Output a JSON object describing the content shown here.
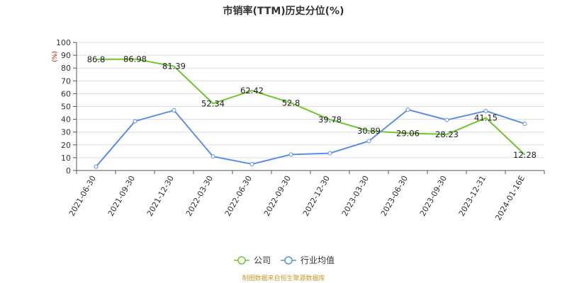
{
  "title": "市销率(TTM)历史分位(%)",
  "unit_label": "(%)",
  "source_note": "制图数据来自恒生聚源数据库",
  "colors": {
    "company": "#6cc62c",
    "industry": "#5b8ee6",
    "axis": "#555555",
    "grid": "#dddddd",
    "source": "#c89a2c"
  },
  "chart_data": {
    "type": "line",
    "categories": [
      "2021-06-30",
      "2021-09-30",
      "2021-12-30",
      "2022-03-30",
      "2022-06-30",
      "2022-09-30",
      "2022-12-30",
      "2023-03-30",
      "2023-06-30",
      "2023-09-30",
      "2023-12-31",
      "2024-01-16E"
    ],
    "ylim": [
      0,
      100
    ],
    "yticks": [
      0,
      10,
      20,
      30,
      40,
      50,
      60,
      70,
      80,
      90,
      100
    ],
    "grid": true,
    "legend_position": "bottom-center",
    "series": [
      {
        "name": "公司",
        "color": "#6cc62c",
        "marker": "none",
        "show_labels": true,
        "values": [
          86.8,
          86.98,
          81.39,
          52.34,
          62.42,
          52.8,
          39.78,
          30.89,
          29.06,
          28.23,
          41.15,
          12.28
        ],
        "labels": [
          "86.8",
          "86.98",
          "81.39",
          "52.34",
          "62.42",
          "52.8",
          "39.78",
          "30.89",
          "29.06",
          "28.23",
          "41.15",
          "12.28"
        ]
      },
      {
        "name": "行业均值",
        "color": "#5b8ee6",
        "marker": "circle",
        "show_labels": false,
        "values": [
          3,
          38.5,
          47,
          11,
          5,
          12.5,
          13.5,
          23,
          47.5,
          39.5,
          46.5,
          36.5
        ]
      }
    ]
  }
}
